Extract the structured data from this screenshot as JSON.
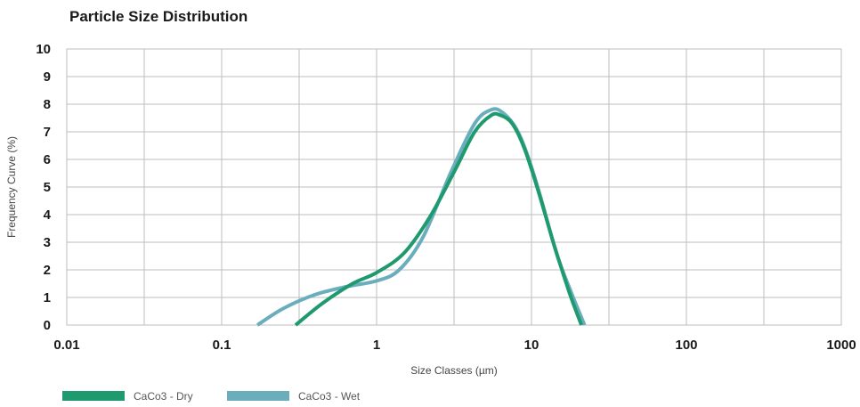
{
  "chart_data": {
    "type": "line",
    "title": "Particle Size Distribution",
    "xlabel": "Size Classes (µm)",
    "ylabel": "Frequency Curve (%)",
    "x_scale": "log",
    "xlim": [
      0.01,
      1000
    ],
    "ylim": [
      0,
      10
    ],
    "x_ticks": [
      "0.01",
      "0.1",
      "1",
      "10",
      "100",
      "1000"
    ],
    "x_tick_values": [
      0.01,
      0.1,
      1,
      10,
      100,
      1000
    ],
    "y_ticks": [
      "0",
      "1",
      "2",
      "3",
      "4",
      "5",
      "6",
      "7",
      "8",
      "9",
      "10"
    ],
    "grid": true,
    "legend_position": "bottom-left",
    "series": [
      {
        "name": "CaCo3 - Dry",
        "color": "#1f9a6e",
        "points": [
          [
            0.3,
            0.0
          ],
          [
            0.45,
            0.8
          ],
          [
            0.7,
            1.5
          ],
          [
            1.0,
            1.9
          ],
          [
            1.5,
            2.6
          ],
          [
            2.2,
            3.9
          ],
          [
            3.2,
            5.6
          ],
          [
            4.3,
            7.0
          ],
          [
            5.5,
            7.6
          ],
          [
            6.3,
            7.6
          ],
          [
            7.5,
            7.3
          ],
          [
            9.0,
            6.4
          ],
          [
            11.0,
            4.9
          ],
          [
            14.0,
            2.9
          ],
          [
            17.5,
            1.2
          ],
          [
            21.0,
            0.0
          ]
        ]
      },
      {
        "name": "CaCo3 - Wet",
        "color": "#6aaebe",
        "points": [
          [
            0.17,
            0.0
          ],
          [
            0.25,
            0.6
          ],
          [
            0.4,
            1.1
          ],
          [
            0.65,
            1.4
          ],
          [
            1.0,
            1.6
          ],
          [
            1.4,
            2.0
          ],
          [
            2.0,
            3.2
          ],
          [
            3.0,
            5.5
          ],
          [
            4.3,
            7.3
          ],
          [
            5.5,
            7.8
          ],
          [
            6.5,
            7.7
          ],
          [
            8.0,
            7.1
          ],
          [
            9.5,
            6.1
          ],
          [
            11.5,
            4.6
          ],
          [
            14.5,
            2.6
          ],
          [
            18.0,
            1.2
          ],
          [
            22.0,
            0.0
          ]
        ]
      }
    ]
  }
}
